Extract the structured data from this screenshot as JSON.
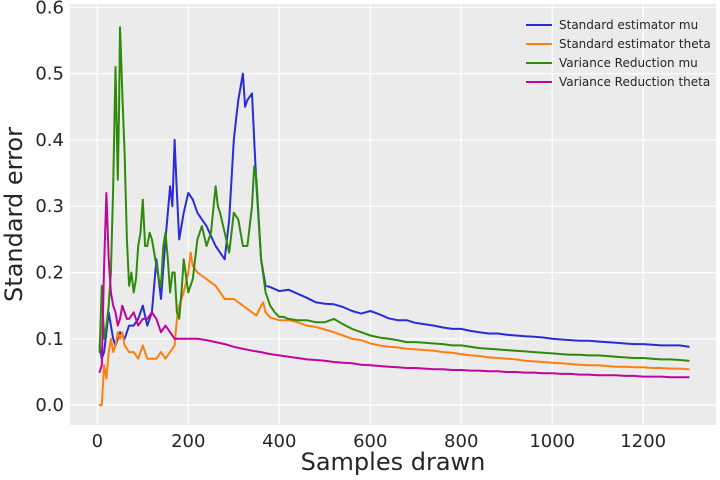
{
  "chart_data": {
    "type": "line",
    "xlabel": "Samples drawn",
    "ylabel": "Standard error",
    "xlim": [
      -60,
      1360
    ],
    "ylim": [
      -0.03,
      0.605
    ],
    "xticks": [
      0,
      200,
      400,
      600,
      800,
      1000,
      1200
    ],
    "yticks": [
      0.0,
      0.1,
      0.2,
      0.3,
      0.4,
      0.5,
      0.6
    ],
    "ytick_labels": [
      "0.0",
      "0.1",
      "0.2",
      "0.3",
      "0.4",
      "0.5",
      "0.6"
    ],
    "grid": true,
    "legend_position": "top-right",
    "background": "#ebebeb",
    "series": [
      {
        "name": "Standard estimator mu",
        "color": "#2a2cd9",
        "x": [
          5,
          10,
          15,
          20,
          25,
          30,
          35,
          40,
          50,
          60,
          70,
          80,
          90,
          100,
          110,
          120,
          130,
          140,
          150,
          160,
          165,
          170,
          175,
          180,
          190,
          200,
          210,
          220,
          240,
          260,
          280,
          290,
          300,
          305,
          310,
          320,
          325,
          330,
          340,
          345,
          350,
          360,
          365,
          370,
          380,
          400,
          420,
          440,
          460,
          480,
          500,
          520,
          540,
          560,
          580,
          600,
          620,
          640,
          660,
          680,
          700,
          720,
          740,
          760,
          780,
          800,
          820,
          840,
          860,
          880,
          900,
          920,
          940,
          960,
          980,
          1000,
          1020,
          1040,
          1060,
          1080,
          1100,
          1120,
          1140,
          1160,
          1180,
          1200,
          1220,
          1240,
          1260,
          1280,
          1300
        ],
        "values": [
          0.09,
          0.07,
          0.08,
          0.11,
          0.14,
          0.12,
          0.1,
          0.09,
          0.11,
          0.1,
          0.12,
          0.12,
          0.13,
          0.15,
          0.12,
          0.14,
          0.22,
          0.16,
          0.25,
          0.33,
          0.3,
          0.4,
          0.32,
          0.25,
          0.29,
          0.32,
          0.31,
          0.29,
          0.27,
          0.24,
          0.22,
          0.28,
          0.4,
          0.43,
          0.46,
          0.5,
          0.45,
          0.46,
          0.47,
          0.4,
          0.33,
          0.22,
          0.2,
          0.18,
          0.178,
          0.172,
          0.174,
          0.168,
          0.162,
          0.155,
          0.153,
          0.152,
          0.148,
          0.142,
          0.138,
          0.142,
          0.137,
          0.131,
          0.128,
          0.128,
          0.124,
          0.122,
          0.12,
          0.117,
          0.115,
          0.115,
          0.112,
          0.11,
          0.108,
          0.108,
          0.106,
          0.105,
          0.104,
          0.103,
          0.102,
          0.1,
          0.099,
          0.098,
          0.097,
          0.097,
          0.096,
          0.095,
          0.094,
          0.093,
          0.092,
          0.092,
          0.091,
          0.09,
          0.09,
          0.09,
          0.088
        ]
      },
      {
        "name": "Standard estimator theta",
        "color": "#ff7f0e",
        "x": [
          5,
          10,
          15,
          20,
          25,
          30,
          35,
          40,
          45,
          50,
          55,
          60,
          70,
          80,
          90,
          100,
          110,
          120,
          130,
          140,
          150,
          160,
          170,
          175,
          180,
          190,
          200,
          205,
          210,
          220,
          240,
          260,
          280,
          300,
          320,
          340,
          350,
          360,
          365,
          370,
          380,
          400,
          420,
          440,
          460,
          480,
          500,
          520,
          540,
          560,
          580,
          600,
          620,
          640,
          660,
          680,
          700,
          720,
          740,
          760,
          780,
          800,
          820,
          840,
          860,
          880,
          900,
          920,
          940,
          960,
          980,
          1000,
          1020,
          1040,
          1060,
          1080,
          1100,
          1120,
          1140,
          1160,
          1180,
          1200,
          1220,
          1240,
          1260,
          1280,
          1300
        ],
        "values": [
          0.0,
          0.0,
          0.06,
          0.04,
          0.08,
          0.1,
          0.08,
          0.09,
          0.11,
          0.1,
          0.11,
          0.09,
          0.08,
          0.08,
          0.07,
          0.09,
          0.07,
          0.07,
          0.07,
          0.08,
          0.07,
          0.08,
          0.09,
          0.13,
          0.15,
          0.17,
          0.2,
          0.23,
          0.21,
          0.2,
          0.19,
          0.18,
          0.16,
          0.16,
          0.15,
          0.14,
          0.135,
          0.15,
          0.155,
          0.14,
          0.132,
          0.128,
          0.128,
          0.125,
          0.12,
          0.118,
          0.114,
          0.11,
          0.105,
          0.1,
          0.098,
          0.093,
          0.09,
          0.088,
          0.087,
          0.085,
          0.084,
          0.083,
          0.082,
          0.08,
          0.079,
          0.077,
          0.075,
          0.074,
          0.072,
          0.071,
          0.07,
          0.069,
          0.067,
          0.066,
          0.065,
          0.064,
          0.063,
          0.062,
          0.061,
          0.06,
          0.06,
          0.059,
          0.058,
          0.058,
          0.057,
          0.057,
          0.056,
          0.056,
          0.055,
          0.055,
          0.054
        ]
      },
      {
        "name": "Variance Reduction mu",
        "color": "#2e8b0a",
        "x": [
          5,
          10,
          15,
          20,
          25,
          30,
          35,
          40,
          45,
          48,
          50,
          52,
          55,
          60,
          65,
          70,
          75,
          80,
          85,
          90,
          95,
          100,
          105,
          110,
          115,
          120,
          125,
          130,
          135,
          140,
          145,
          150,
          155,
          160,
          165,
          170,
          175,
          180,
          185,
          190,
          200,
          210,
          220,
          230,
          240,
          250,
          260,
          265,
          270,
          280,
          290,
          300,
          310,
          320,
          330,
          340,
          345,
          350,
          355,
          360,
          370,
          380,
          390,
          400,
          410,
          420,
          440,
          460,
          480,
          500,
          520,
          540,
          560,
          580,
          600,
          620,
          640,
          660,
          680,
          700,
          720,
          740,
          760,
          780,
          800,
          820,
          840,
          860,
          880,
          900,
          920,
          940,
          960,
          980,
          1000,
          1020,
          1040,
          1060,
          1080,
          1100,
          1120,
          1140,
          1160,
          1180,
          1200,
          1220,
          1240,
          1260,
          1280,
          1300
        ],
        "values": [
          0.08,
          0.18,
          0.1,
          0.12,
          0.15,
          0.2,
          0.33,
          0.51,
          0.34,
          0.45,
          0.57,
          0.53,
          0.47,
          0.38,
          0.25,
          0.18,
          0.2,
          0.17,
          0.19,
          0.24,
          0.26,
          0.31,
          0.24,
          0.24,
          0.26,
          0.25,
          0.23,
          0.21,
          0.19,
          0.18,
          0.24,
          0.26,
          0.22,
          0.17,
          0.2,
          0.2,
          0.14,
          0.13,
          0.17,
          0.22,
          0.17,
          0.19,
          0.25,
          0.27,
          0.24,
          0.26,
          0.33,
          0.3,
          0.29,
          0.26,
          0.23,
          0.29,
          0.28,
          0.24,
          0.24,
          0.3,
          0.36,
          0.34,
          0.28,
          0.22,
          0.17,
          0.15,
          0.14,
          0.133,
          0.133,
          0.13,
          0.128,
          0.128,
          0.125,
          0.125,
          0.13,
          0.122,
          0.115,
          0.11,
          0.105,
          0.102,
          0.1,
          0.098,
          0.095,
          0.095,
          0.094,
          0.093,
          0.092,
          0.09,
          0.09,
          0.088,
          0.086,
          0.085,
          0.084,
          0.083,
          0.082,
          0.081,
          0.08,
          0.079,
          0.078,
          0.077,
          0.076,
          0.076,
          0.075,
          0.075,
          0.074,
          0.073,
          0.072,
          0.071,
          0.071,
          0.07,
          0.069,
          0.069,
          0.068,
          0.067
        ]
      },
      {
        "name": "Variance Reduction theta",
        "color": "#c1049d",
        "x": [
          5,
          10,
          15,
          20,
          25,
          30,
          35,
          40,
          45,
          50,
          55,
          60,
          65,
          70,
          80,
          90,
          100,
          110,
          120,
          130,
          140,
          150,
          160,
          170,
          180,
          190,
          200,
          220,
          240,
          260,
          280,
          300,
          320,
          340,
          360,
          380,
          400,
          420,
          440,
          460,
          480,
          500,
          520,
          540,
          560,
          580,
          600,
          620,
          640,
          660,
          680,
          700,
          720,
          740,
          760,
          780,
          800,
          820,
          840,
          860,
          880,
          900,
          920,
          940,
          960,
          980,
          1000,
          1020,
          1040,
          1060,
          1080,
          1100,
          1120,
          1140,
          1160,
          1180,
          1200,
          1220,
          1240,
          1260,
          1280,
          1300
        ],
        "values": [
          0.05,
          0.06,
          0.21,
          0.32,
          0.22,
          0.17,
          0.15,
          0.14,
          0.12,
          0.13,
          0.15,
          0.14,
          0.13,
          0.13,
          0.14,
          0.12,
          0.13,
          0.13,
          0.14,
          0.13,
          0.11,
          0.12,
          0.11,
          0.1,
          0.1,
          0.1,
          0.1,
          0.1,
          0.098,
          0.095,
          0.092,
          0.088,
          0.085,
          0.082,
          0.08,
          0.077,
          0.075,
          0.073,
          0.071,
          0.069,
          0.068,
          0.067,
          0.065,
          0.064,
          0.063,
          0.061,
          0.06,
          0.059,
          0.058,
          0.057,
          0.056,
          0.056,
          0.055,
          0.054,
          0.054,
          0.053,
          0.053,
          0.052,
          0.052,
          0.051,
          0.051,
          0.05,
          0.05,
          0.049,
          0.049,
          0.048,
          0.048,
          0.047,
          0.047,
          0.046,
          0.046,
          0.045,
          0.045,
          0.045,
          0.044,
          0.044,
          0.043,
          0.043,
          0.043,
          0.042,
          0.042,
          0.042
        ]
      }
    ]
  }
}
